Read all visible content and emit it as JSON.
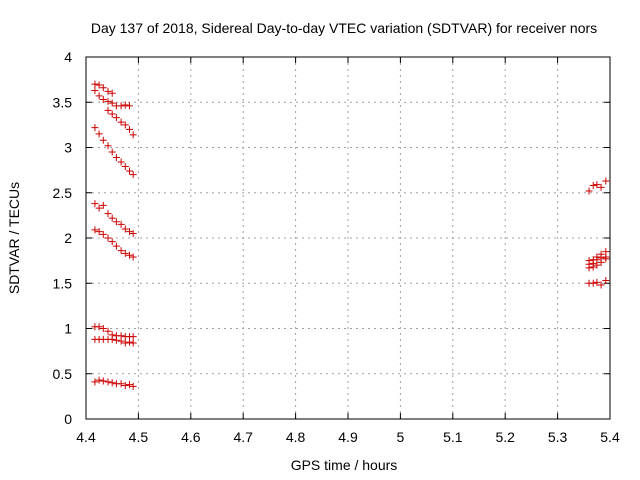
{
  "chart_data": {
    "type": "scatter",
    "title": "Day 137 of 2018, Sidereal Day-to-day VTEC variation (SDTVAR) for receiver nors",
    "xlabel": "GPS time / hours",
    "ylabel": "SDTVAR / TECUs",
    "xlim": [
      4.4,
      5.4
    ],
    "ylim": [
      0,
      4
    ],
    "xticks": [
      "4.4",
      "4.5",
      "4.6",
      "4.7",
      "4.8",
      "4.9",
      "5",
      "5.1",
      "5.2",
      "5.3",
      "5.4"
    ],
    "yticks": [
      "0",
      "0.5",
      "1",
      "1.5",
      "2",
      "2.5",
      "3",
      "3.5",
      "4"
    ],
    "grid": true,
    "marker": "+",
    "marker_color": "#cc0000",
    "series": [
      {
        "points": [
          [
            4.417,
            3.7
          ],
          [
            4.425,
            3.69
          ],
          [
            4.433,
            3.66
          ],
          [
            4.442,
            3.62
          ],
          [
            4.45,
            3.6
          ],
          [
            4.417,
            3.63
          ],
          [
            4.425,
            3.57
          ],
          [
            4.433,
            3.53
          ],
          [
            4.442,
            3.51
          ],
          [
            4.45,
            3.49
          ],
          [
            4.458,
            3.46
          ],
          [
            4.467,
            3.46
          ],
          [
            4.475,
            3.47
          ],
          [
            4.483,
            3.46
          ],
          [
            4.442,
            3.41
          ],
          [
            4.45,
            3.37
          ],
          [
            4.458,
            3.33
          ],
          [
            4.467,
            3.28
          ],
          [
            4.475,
            3.25
          ],
          [
            4.483,
            3.2
          ],
          [
            4.49,
            3.14
          ],
          [
            4.417,
            3.22
          ],
          [
            4.425,
            3.15
          ],
          [
            4.433,
            3.08
          ],
          [
            4.442,
            3.02
          ],
          [
            4.45,
            2.95
          ],
          [
            4.458,
            2.89
          ],
          [
            4.467,
            2.84
          ],
          [
            4.475,
            2.79
          ],
          [
            4.483,
            2.74
          ],
          [
            4.49,
            2.7
          ],
          [
            4.417,
            2.38
          ],
          [
            4.425,
            2.33
          ],
          [
            4.433,
            2.36
          ],
          [
            4.442,
            2.27
          ],
          [
            4.45,
            2.22
          ],
          [
            4.458,
            2.18
          ],
          [
            4.467,
            2.15
          ],
          [
            4.475,
            2.1
          ],
          [
            4.483,
            2.07
          ],
          [
            4.49,
            2.05
          ],
          [
            4.417,
            2.09
          ],
          [
            4.425,
            2.07
          ],
          [
            4.433,
            2.04
          ],
          [
            4.442,
            2.0
          ],
          [
            4.45,
            1.96
          ],
          [
            4.458,
            1.91
          ],
          [
            4.467,
            1.86
          ],
          [
            4.475,
            1.83
          ],
          [
            4.483,
            1.81
          ],
          [
            4.49,
            1.79
          ],
          [
            4.417,
            1.02
          ],
          [
            4.425,
            1.02
          ],
          [
            4.433,
            1.0
          ],
          [
            4.442,
            0.97
          ],
          [
            4.45,
            0.93
          ],
          [
            4.458,
            0.92
          ],
          [
            4.467,
            0.92
          ],
          [
            4.475,
            0.91
          ],
          [
            4.483,
            0.91
          ],
          [
            4.49,
            0.91
          ],
          [
            4.417,
            0.88
          ],
          [
            4.425,
            0.88
          ],
          [
            4.433,
            0.88
          ],
          [
            4.442,
            0.88
          ],
          [
            4.45,
            0.88
          ],
          [
            4.458,
            0.87
          ],
          [
            4.467,
            0.86
          ],
          [
            4.475,
            0.84
          ],
          [
            4.483,
            0.85
          ],
          [
            4.49,
            0.84
          ],
          [
            4.417,
            0.41
          ],
          [
            4.425,
            0.43
          ],
          [
            4.433,
            0.42
          ],
          [
            4.442,
            0.41
          ],
          [
            4.45,
            0.4
          ],
          [
            4.458,
            0.39
          ],
          [
            4.467,
            0.39
          ],
          [
            4.475,
            0.37
          ],
          [
            4.483,
            0.38
          ],
          [
            4.49,
            0.36
          ],
          [
            5.36,
            2.52
          ],
          [
            5.368,
            2.58
          ],
          [
            5.375,
            2.59
          ],
          [
            5.383,
            2.56
          ],
          [
            5.392,
            2.63
          ],
          [
            5.36,
            1.75
          ],
          [
            5.368,
            1.76
          ],
          [
            5.375,
            1.79
          ],
          [
            5.383,
            1.82
          ],
          [
            5.392,
            1.85
          ],
          [
            5.36,
            1.71
          ],
          [
            5.368,
            1.72
          ],
          [
            5.375,
            1.76
          ],
          [
            5.383,
            1.78
          ],
          [
            5.392,
            1.79
          ],
          [
            5.36,
            1.67
          ],
          [
            5.368,
            1.68
          ],
          [
            5.375,
            1.7
          ],
          [
            5.383,
            1.73
          ],
          [
            5.392,
            1.77
          ],
          [
            5.36,
            1.5
          ],
          [
            5.368,
            1.5
          ],
          [
            5.375,
            1.51
          ],
          [
            5.383,
            1.48
          ],
          [
            5.392,
            1.53
          ]
        ]
      }
    ]
  }
}
